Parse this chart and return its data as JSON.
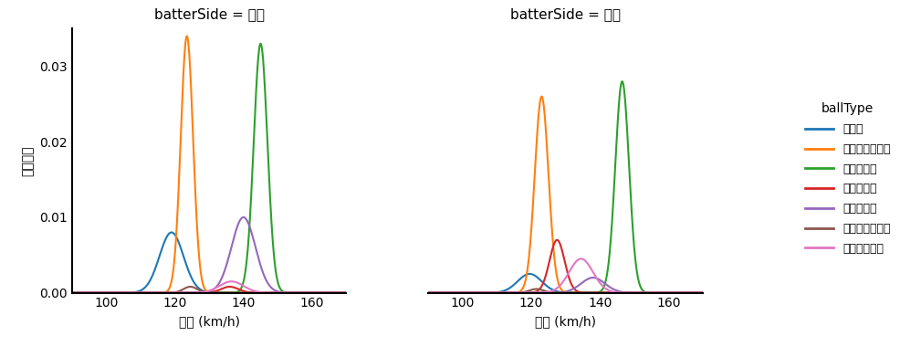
{
  "title_left": "batterSide = 左打",
  "title_right": "batterSide = 右打",
  "ylabel": "確率密度",
  "xlabel": "球速 (km/h)",
  "legend_title": "ballType",
  "legend_labels": [
    "カーブ",
    "チェンジアップ",
    "ストレート",
    "スライダー",
    "ツーシーム",
    "ナックルカーブ",
    "カットボール"
  ],
  "colors": {
    "カーブ": "#1f77b4",
    "チェンジアップ": "#ff7f0e",
    "ストレート": "#2ca02c",
    "スライダー": "#d62728",
    "ツーシーム": "#9467bd",
    "ナックルカーブ": "#8c564b",
    "カットボール": "#e377c2"
  },
  "xlim": [
    90,
    170
  ],
  "ylim": [
    0,
    0.035
  ],
  "yticks": [
    0.0,
    0.01,
    0.02,
    0.03
  ],
  "xticks": [
    100,
    120,
    140,
    160
  ],
  "left": {
    "カーブ": {
      "mean": 119.0,
      "std": 3.5,
      "n": 50
    },
    "チェンジアップ": {
      "mean": 123.5,
      "std": 1.8,
      "n": 500
    },
    "ストレート": {
      "mean": 145.0,
      "std": 2.0,
      "n": 500
    },
    "スライダー": {
      "mean": 134.0,
      "std": 2.5,
      "n": 30
    },
    "ツーシーム": {
      "mean": 140.0,
      "std": 3.5,
      "n": 100
    },
    "ナックルカーブ": {
      "mean": 124.0,
      "std": 2.0,
      "n": 15
    },
    "カットボール": {
      "mean": 136.0,
      "std": 3.0,
      "n": 20
    }
  },
  "right": {
    "カーブ": {
      "mean": 119.5,
      "std": 3.5,
      "n": 30
    },
    "チェンジアップ": {
      "mean": 123.0,
      "std": 2.0,
      "n": 300
    },
    "ストレート": {
      "mean": 146.5,
      "std": 2.0,
      "n": 500
    },
    "スライダー": {
      "mean": 127.5,
      "std": 2.2,
      "n": 80
    },
    "ツーシーム": {
      "mean": 138.0,
      "std": 3.0,
      "n": 40
    },
    "ナックルカーブ": {
      "mean": 121.5,
      "std": 2.0,
      "n": 10
    },
    "カットボール": {
      "mean": 134.0,
      "std": 3.5,
      "n": 60
    }
  },
  "figsize": [
    9.87,
    3.91
  ],
  "dpi": 100
}
